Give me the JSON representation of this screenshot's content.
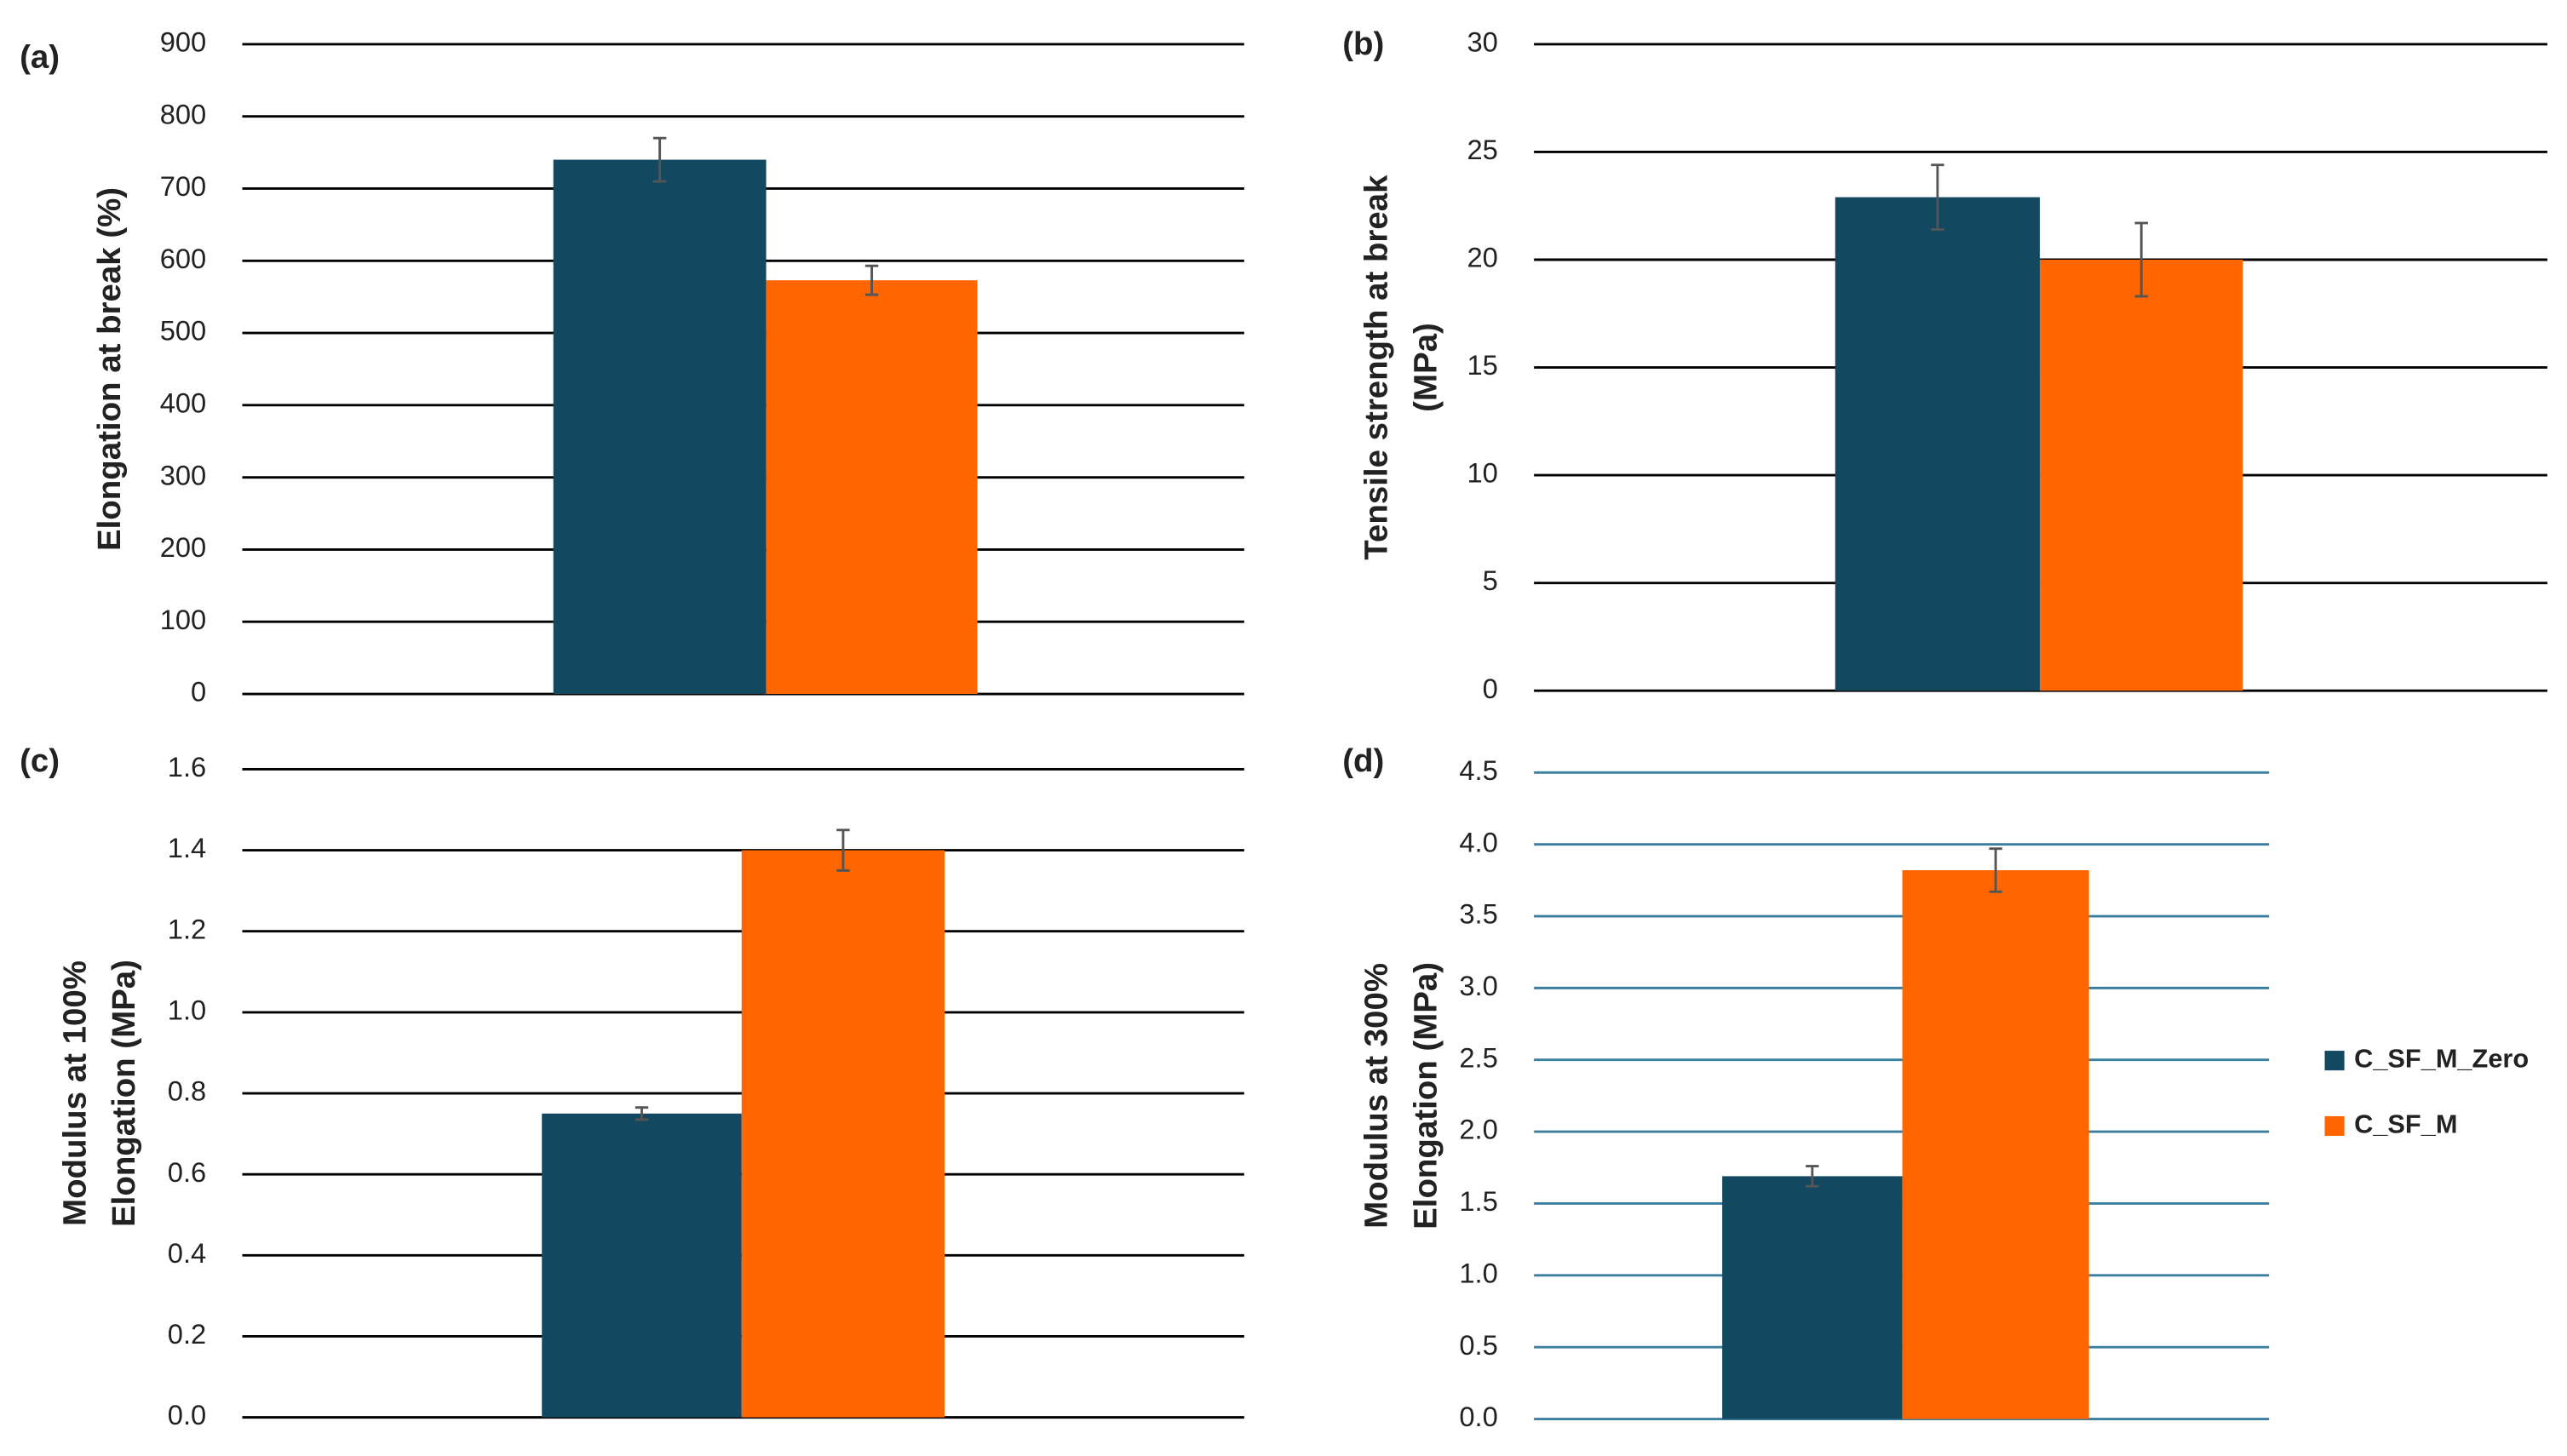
{
  "chart_data": [
    {
      "type": "bar",
      "panel_label": "(a)",
      "ylabel": [
        "Elongation at break (%)"
      ],
      "ylim": [
        0,
        900
      ],
      "yticks": [
        0,
        100,
        200,
        300,
        400,
        500,
        600,
        700,
        800,
        900
      ],
      "grid": true,
      "grid_color": "#000000",
      "series": [
        {
          "color": "#134861",
          "values": [
            740
          ],
          "errors": [
            30
          ]
        },
        {
          "color": "#ff6600",
          "values": [
            573
          ],
          "errors": [
            20
          ]
        }
      ]
    },
    {
      "type": "bar",
      "panel_label": "(b)",
      "ylabel": [
        "Tensile strength at break",
        "(MPa)"
      ],
      "ylim": [
        0,
        30
      ],
      "yticks": [
        0,
        5,
        10,
        15,
        20,
        25,
        30
      ],
      "grid": true,
      "grid_color": "#000000",
      "series": [
        {
          "color": "#134861",
          "values": [
            22.9
          ],
          "errors": [
            1.5
          ]
        },
        {
          "color": "#ff6600",
          "values": [
            20.0
          ],
          "errors": [
            1.7
          ]
        }
      ]
    },
    {
      "type": "bar",
      "panel_label": "(c)",
      "ylabel": [
        "Modulus at 100%",
        "Elongation (MPa)"
      ],
      "ylim": [
        0,
        1.6
      ],
      "yticks": [
        {
          "value": 0,
          "label": "0.0"
        },
        0.2,
        0.4,
        0.6,
        0.8,
        {
          "value": 1,
          "label": "1.0"
        },
        1.2,
        1.4,
        1.6
      ],
      "grid": true,
      "grid_color": "#000000",
      "series": [
        {
          "color": "#134861",
          "values": [
            0.75
          ],
          "errors": [
            0.015
          ]
        },
        {
          "color": "#ff6600",
          "values": [
            1.4
          ],
          "errors": [
            0.05
          ]
        }
      ]
    },
    {
      "type": "bar",
      "panel_label": "(d)",
      "ylabel": [
        "Modulus at 300%",
        "Elongation (MPa)"
      ],
      "ylim": [
        0,
        4.5
      ],
      "yticks": [
        {
          "value": 0,
          "label": "0.0"
        },
        0.5,
        {
          "value": 1,
          "label": "1.0"
        },
        1.5,
        {
          "value": 2,
          "label": "2.0"
        },
        2.5,
        {
          "value": 3,
          "label": "3.0"
        },
        3.5,
        {
          "value": 4,
          "label": "4.0"
        },
        4.5
      ],
      "grid": true,
      "grid_color": "#3a7fa0",
      "legend": "right",
      "series": [
        {
          "name": "C_SF_M_Zero",
          "color": "#134861",
          "values": [
            1.69
          ],
          "errors": [
            0.07
          ]
        },
        {
          "name": "C_SF_M",
          "color": "#ff6600",
          "values": [
            3.82
          ],
          "errors": [
            0.15
          ]
        }
      ]
    }
  ]
}
